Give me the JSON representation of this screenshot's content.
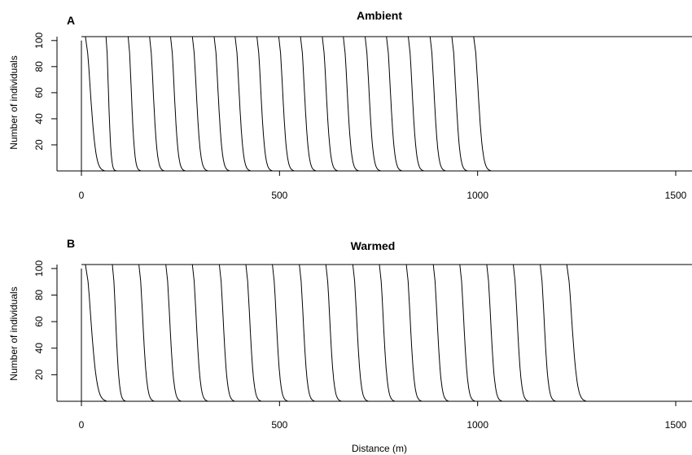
{
  "chart_data": [
    {
      "type": "line",
      "panel_label": "A",
      "title": "Ambient",
      "ylabel": "Number of individuals",
      "xlabel": "",
      "xlim": [
        -10,
        1540
      ],
      "ylim": [
        0,
        103
      ],
      "x_ticks": [
        0,
        500,
        1000,
        1500
      ],
      "y_ticks": [
        20,
        40,
        60,
        80,
        100
      ],
      "front_positions": [
        10,
        62,
        118,
        172,
        225,
        280,
        335,
        388,
        443,
        498,
        553,
        608,
        661,
        716,
        770,
        825,
        880,
        935,
        990
      ],
      "tail_lengths": [
        45,
        22,
        28,
        33,
        33,
        35,
        35,
        35,
        35,
        35,
        35,
        35,
        35,
        35,
        35,
        35,
        35,
        35,
        40
      ]
    },
    {
      "type": "line",
      "panel_label": "B",
      "title": "Warmed",
      "ylabel": "Number of individuals",
      "xlabel": "Distance (m)",
      "xlim": [
        -10,
        1540
      ],
      "ylim": [
        0,
        103
      ],
      "x_ticks": [
        0,
        500,
        1000,
        1500
      ],
      "y_ticks": [
        20,
        40,
        60,
        80,
        100
      ],
      "front_positions": [
        10,
        78,
        145,
        213,
        280,
        348,
        415,
        482,
        550,
        617,
        685,
        752,
        820,
        888,
        955,
        1023,
        1090,
        1158,
        1225
      ],
      "tail_lengths": [
        50,
        30,
        35,
        35,
        35,
        35,
        35,
        35,
        35,
        35,
        35,
        35,
        35,
        35,
        35,
        35,
        35,
        35,
        45
      ]
    }
  ]
}
